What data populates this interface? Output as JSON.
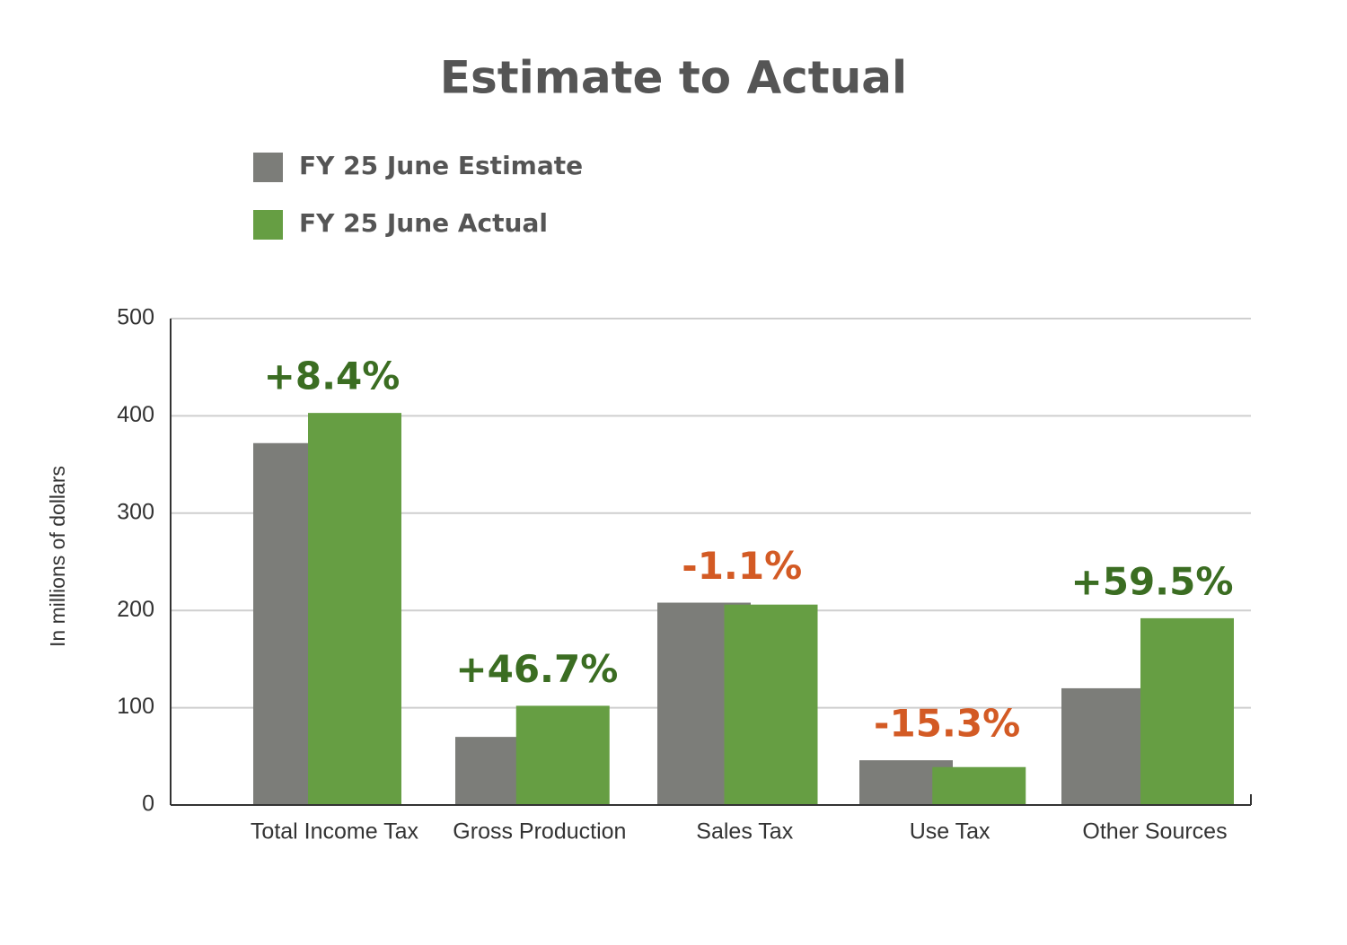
{
  "chart_data": {
    "type": "bar",
    "title": "Estimate to Actual",
    "y_label": "In millions of dollars",
    "categories": [
      "Total Income Tax",
      "Gross Production",
      "Sales Tax",
      "Use Tax",
      "Other Sources"
    ],
    "series": [
      {
        "name": "FY 25 June Estimate",
        "color": "#7c7d79",
        "values": [
          372,
          70,
          208,
          46,
          120
        ]
      },
      {
        "name": "FY 25 June Actual",
        "color": "#669e43",
        "values": [
          403,
          102,
          206,
          39,
          192
        ]
      }
    ],
    "annotations": [
      {
        "text": "+8.4%",
        "color": "#3b6d22"
      },
      {
        "text": "+46.7%",
        "color": "#3b6d22"
      },
      {
        "text": "-1.1%",
        "color": "#d35a24"
      },
      {
        "text": "-15.3%",
        "color": "#d35a24"
      },
      {
        "text": "+59.5%",
        "color": "#3b6d22"
      }
    ],
    "ylim": [
      0,
      500
    ],
    "yticks": [
      0,
      100,
      200,
      300,
      400,
      500
    ],
    "grid": true
  }
}
